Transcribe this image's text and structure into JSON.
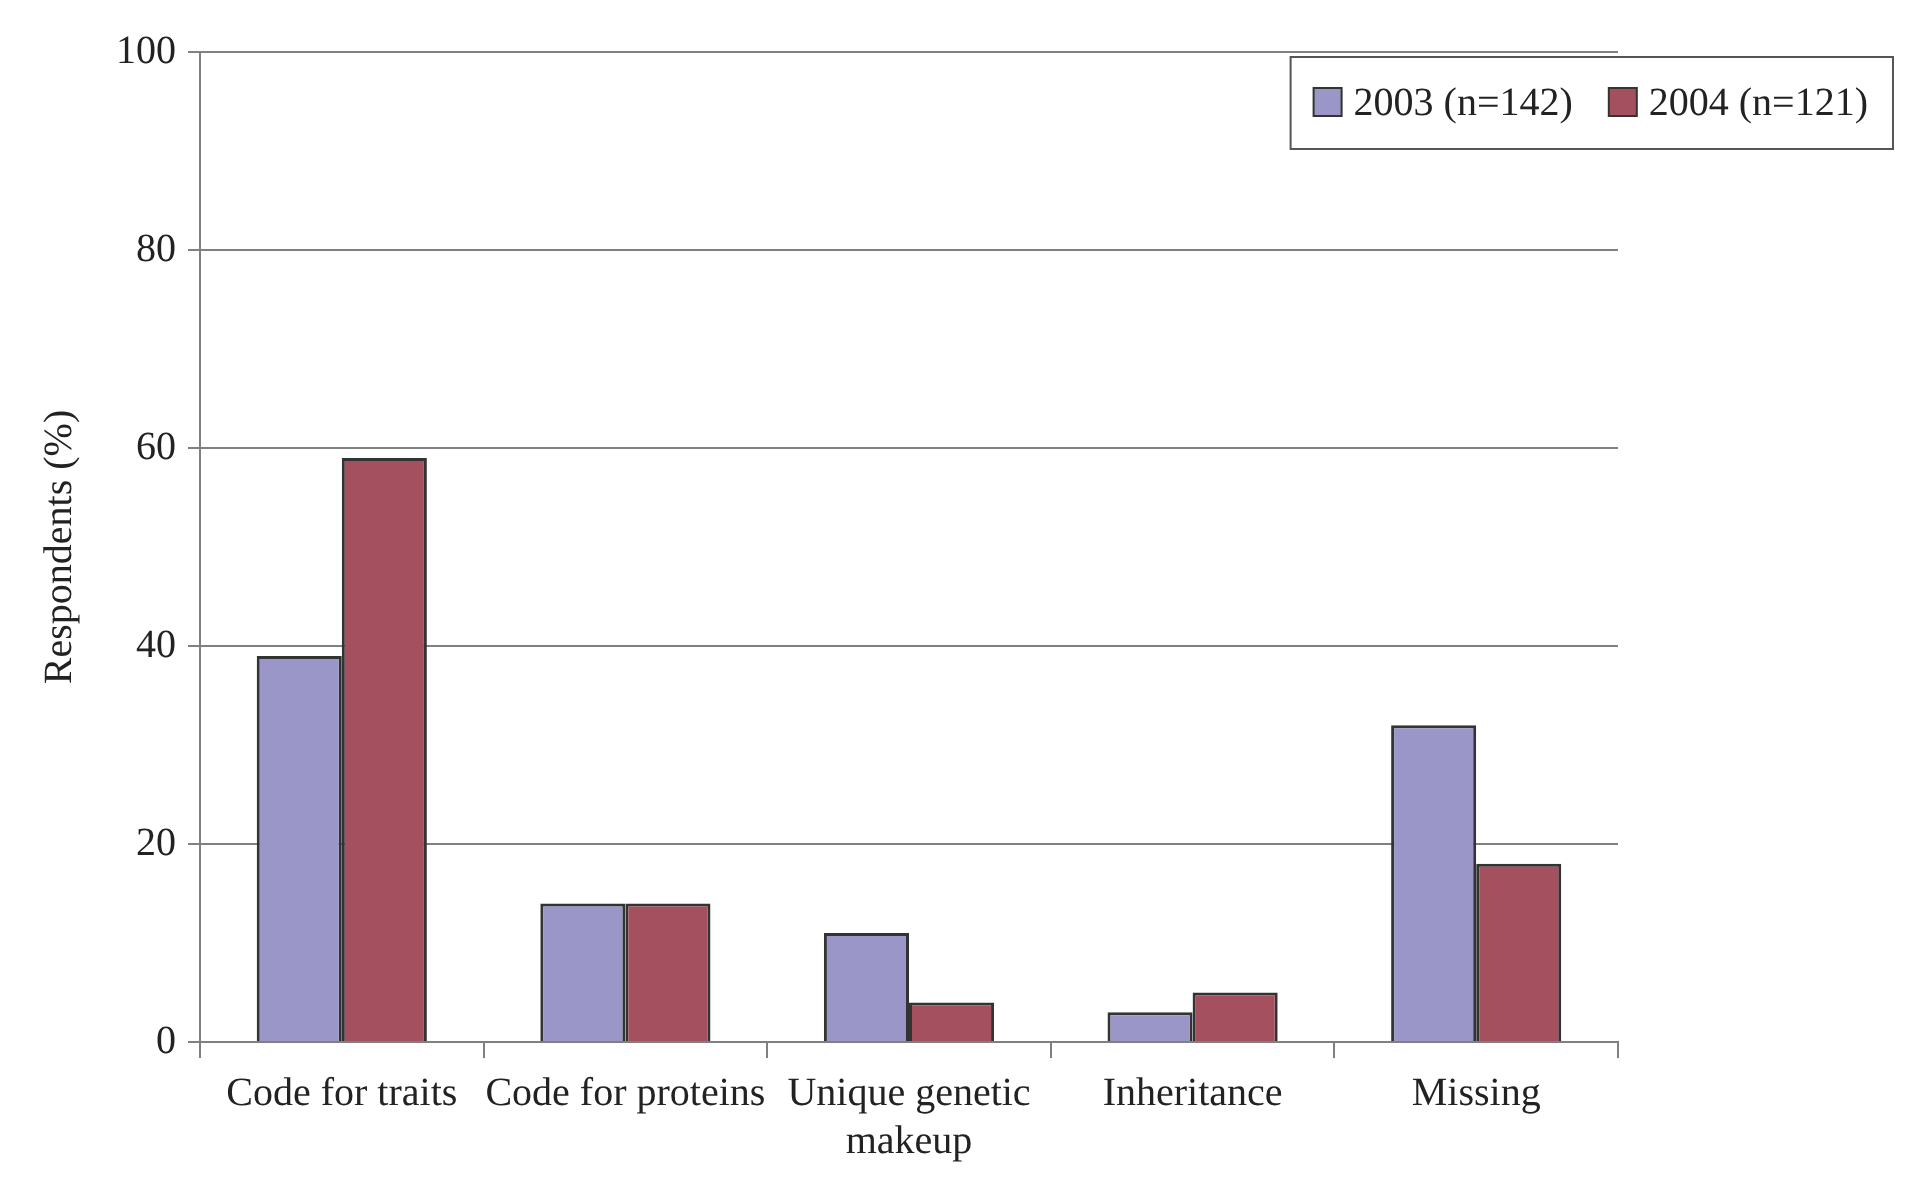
{
  "chart_data": {
    "type": "bar",
    "categories": [
      "Code for traits",
      "Code for proteins",
      "Unique genetic makeup",
      "Inheritance",
      "Missing"
    ],
    "series": [
      {
        "name": "2003 (n=142)",
        "color": "#9b96c8",
        "values": [
          39,
          14,
          11,
          3,
          32
        ]
      },
      {
        "name": "2004 (n=121)",
        "color": "#a5505f",
        "values": [
          59,
          14,
          4,
          5,
          18
        ]
      }
    ],
    "ylabel": "Respondents (%)",
    "ylim": [
      0,
      100
    ],
    "yticks": [
      0,
      20,
      40,
      60,
      80,
      100
    ],
    "grid": "y",
    "legend": "top right"
  }
}
